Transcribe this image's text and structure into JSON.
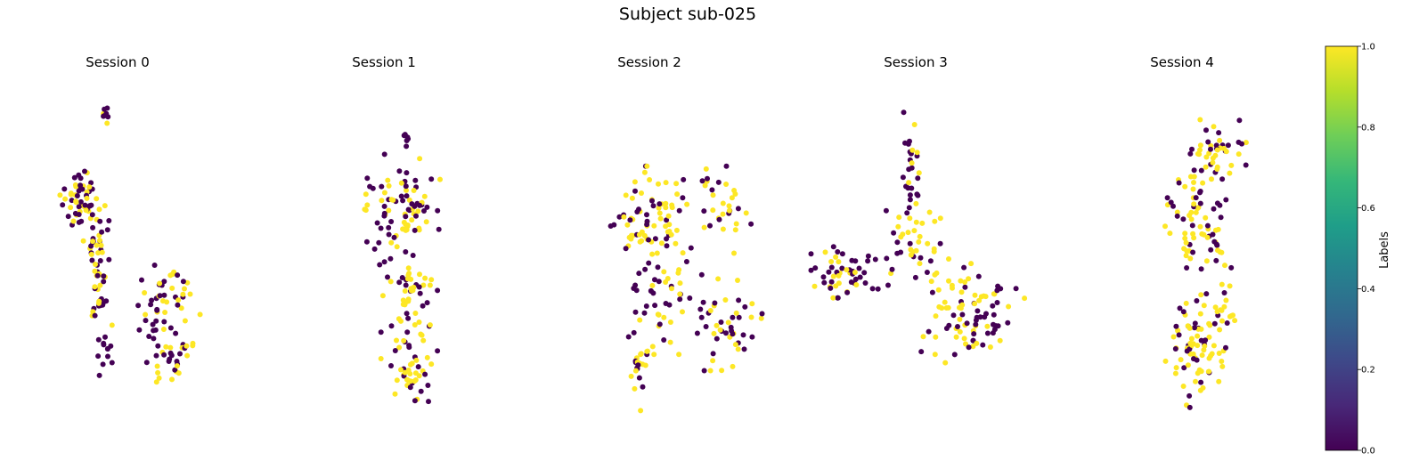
{
  "figure": {
    "title": "Subject sub-025"
  },
  "colors": {
    "label_0": "#440154",
    "label_1": "#fde725",
    "colormap": "viridis",
    "colormap_stops": [
      "#440154",
      "#482878",
      "#3e4989",
      "#31688e",
      "#26828e",
      "#1f9e89",
      "#35b779",
      "#6ece58",
      "#b5de2b",
      "#fde725"
    ]
  },
  "colorbar": {
    "label": "Labels",
    "ticks": [
      "0.0",
      "0.2",
      "0.4",
      "0.6",
      "0.8",
      "1.0"
    ],
    "range": [
      0,
      1
    ]
  },
  "chart_data": [
    {
      "type": "scatter",
      "title": "Session 0",
      "axes": "off",
      "color_by": "Labels",
      "clusters": [
        {
          "cx": 3.6,
          "cy": 11.9,
          "sx": 0.12,
          "sy": 0.2,
          "n": 8,
          "p_yellow": 0.15
        },
        {
          "cx": 2.1,
          "cy": 8.8,
          "sx": 0.55,
          "sy": 0.45,
          "n": 55,
          "p_yellow": 0.55
        },
        {
          "cx": 3.0,
          "cy": 7.2,
          "sx": 0.35,
          "sy": 0.6,
          "n": 30,
          "p_yellow": 0.5
        },
        {
          "cx": 3.2,
          "cy": 5.2,
          "sx": 0.25,
          "sy": 0.7,
          "n": 28,
          "p_yellow": 0.45
        },
        {
          "cx": 3.5,
          "cy": 3.0,
          "sx": 0.2,
          "sy": 0.5,
          "n": 12,
          "p_yellow": 0.1
        },
        {
          "cx": 7.0,
          "cy": 5.0,
          "sx": 0.8,
          "sy": 0.6,
          "n": 45,
          "p_yellow": 0.55
        },
        {
          "cx": 7.1,
          "cy": 2.9,
          "sx": 0.65,
          "sy": 0.5,
          "n": 35,
          "p_yellow": 0.55
        }
      ]
    },
    {
      "type": "scatter",
      "title": "Session 1",
      "axes": "off",
      "color_by": "Labels",
      "clusters": [
        {
          "cx": 5.8,
          "cy": 11.0,
          "sx": 0.2,
          "sy": 0.15,
          "n": 6,
          "p_yellow": 0.0
        },
        {
          "cx": 5.2,
          "cy": 8.0,
          "sx": 1.3,
          "sy": 1.1,
          "n": 95,
          "p_yellow": 0.45
        },
        {
          "cx": 5.9,
          "cy": 4.8,
          "sx": 0.9,
          "sy": 1.0,
          "n": 50,
          "p_yellow": 0.55
        },
        {
          "cx": 6.0,
          "cy": 2.4,
          "sx": 0.8,
          "sy": 0.6,
          "n": 35,
          "p_yellow": 0.55
        }
      ]
    },
    {
      "type": "scatter",
      "title": "Session 2",
      "axes": "off",
      "color_by": "Labels",
      "clusters": [
        {
          "cx": 4.2,
          "cy": 8.0,
          "sx": 1.1,
          "sy": 0.9,
          "n": 80,
          "p_yellow": 0.55
        },
        {
          "cx": 7.8,
          "cy": 8.6,
          "sx": 0.9,
          "sy": 0.9,
          "n": 35,
          "p_yellow": 0.55
        },
        {
          "cx": 4.7,
          "cy": 5.0,
          "sx": 0.9,
          "sy": 0.9,
          "n": 40,
          "p_yellow": 0.45
        },
        {
          "cx": 3.4,
          "cy": 2.6,
          "sx": 0.35,
          "sy": 0.9,
          "n": 22,
          "p_yellow": 0.4
        },
        {
          "cx": 8.3,
          "cy": 4.4,
          "sx": 1.2,
          "sy": 0.9,
          "n": 50,
          "p_yellow": 0.45
        }
      ]
    },
    {
      "type": "scatter",
      "title": "Session 3",
      "axes": "off",
      "color_by": "Labels",
      "clusters": [
        {
          "cx": 5.0,
          "cy": 9.8,
          "sx": 0.25,
          "sy": 1.0,
          "n": 28,
          "p_yellow": 0.4
        },
        {
          "cx": 5.2,
          "cy": 7.4,
          "sx": 0.7,
          "sy": 0.7,
          "n": 35,
          "p_yellow": 0.55
        },
        {
          "cx": 2.0,
          "cy": 6.1,
          "sx": 0.9,
          "sy": 0.45,
          "n": 55,
          "p_yellow": 0.3
        },
        {
          "cx": 7.8,
          "cy": 4.4,
          "sx": 1.2,
          "sy": 0.9,
          "n": 90,
          "p_yellow": 0.55
        }
      ]
    },
    {
      "type": "scatter",
      "title": "Session 4",
      "axes": "off",
      "color_by": "Labels",
      "clusters": [
        {
          "cx": 7.0,
          "cy": 10.6,
          "sx": 1.2,
          "sy": 0.5,
          "n": 45,
          "p_yellow": 0.6
        },
        {
          "cx": 5.0,
          "cy": 8.2,
          "sx": 1.0,
          "sy": 0.9,
          "n": 55,
          "p_yellow": 0.6
        },
        {
          "cx": 7.0,
          "cy": 7.2,
          "sx": 0.6,
          "sy": 0.7,
          "n": 18,
          "p_yellow": 0.5
        },
        {
          "cx": 5.2,
          "cy": 3.3,
          "sx": 1.0,
          "sy": 1.1,
          "n": 80,
          "p_yellow": 0.6
        },
        {
          "cx": 7.5,
          "cy": 4.6,
          "sx": 0.4,
          "sy": 0.7,
          "n": 20,
          "p_yellow": 0.6
        }
      ]
    }
  ]
}
